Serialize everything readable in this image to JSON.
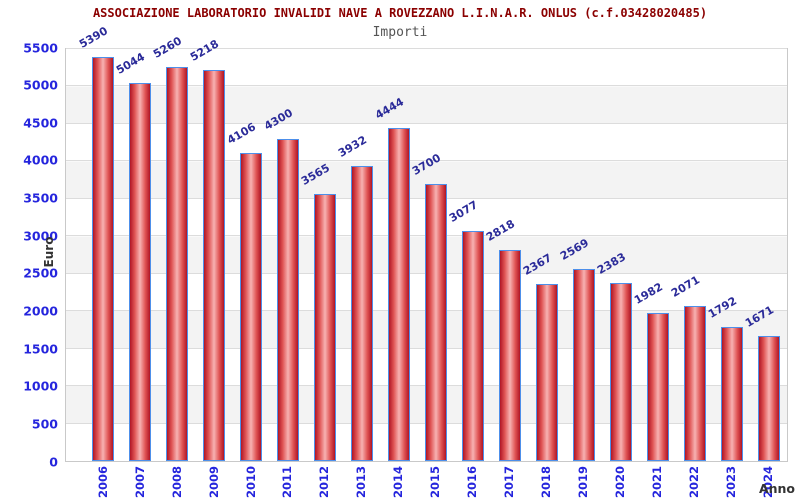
{
  "header": {
    "title": "ASSOCIAZIONE LABORATORIO INVALIDI NAVE A ROVEZZANO L.I.N.A.R. ONLUS (c.f.03428020485)",
    "subtitle": "Importi"
  },
  "chart_data": {
    "type": "bar",
    "title": "ASSOCIAZIONE LABORATORIO INVALIDI NAVE A ROVEZZANO L.I.N.A.R. ONLUS (c.f.03428020485)",
    "subtitle": "Importi",
    "xlabel": "Anno",
    "ylabel": "Euro",
    "categories": [
      "2006",
      "2007",
      "2008",
      "2009",
      "2010",
      "2011",
      "2012",
      "2013",
      "2014",
      "2015",
      "2016",
      "2017",
      "2018",
      "2019",
      "2020",
      "2021",
      "2022",
      "2023",
      "2024"
    ],
    "values": [
      5390,
      5044,
      5260,
      5218,
      4106,
      4300,
      3565,
      3932,
      4444,
      3700,
      3077,
      2818,
      2367,
      2569,
      2383,
      1982,
      2071,
      1792,
      1671
    ],
    "ylim": [
      0,
      5500
    ],
    "y_ticks": [
      0,
      500,
      1000,
      1500,
      2000,
      2500,
      3000,
      3500,
      4000,
      4500,
      5000,
      5500
    ],
    "grid": true,
    "legend_position": "none",
    "bands": "alternating horizontal white/gray every 500",
    "colors": {
      "title_red": "#8b0000",
      "subtitle_gray": "#555555",
      "tick_label_blue": "#2525dd",
      "value_label_navy": "#2b2b99",
      "axis_title_dark": "#333333",
      "bar_border_blue": "#4d8fea",
      "bar_edge_red": "#b01525",
      "bar_mid_red": "#e05555",
      "bar_center_pink": "#f7b2b2",
      "band_gray": "#f3f3f3",
      "gridline_gray": "#dcdcdc"
    }
  }
}
